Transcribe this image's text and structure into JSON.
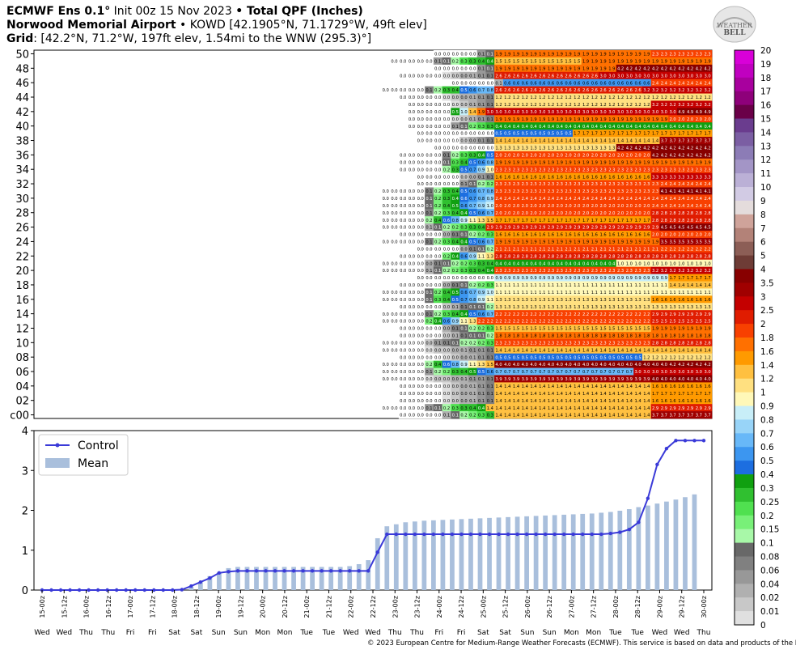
{
  "header": {
    "line1_model": "ECMWF Ens 0.1",
    "line1_deg": "°",
    "line1_init": " Init 00z 15 Nov 2023 ",
    "line1_bullet": "•",
    "line1_var": " Total QPF (Inches)",
    "line2_site": "Norwood Memorial Airport",
    "line2_rest": " • KOWD [42.1905°N, 71.1729°W, 49ft elev]",
    "line3_grid": "Grid",
    "line3_rest": ": [42.2°N, 71.2°W, 197ft elev, 1.54mi to the WNW (295.3)°]"
  },
  "logo": {
    "text_top": "WEATHER",
    "text_bottom": "BELL"
  },
  "copyright": "© 2023 European Centre for Medium-Range Weather Forecasts (ECMWF). This service is based on data and products of the ECMWF.",
  "colorbar": {
    "labels": [
      "20",
      "19",
      "18",
      "17",
      "16",
      "15",
      "14",
      "13",
      "12",
      "11",
      "10",
      "9",
      "8",
      "7",
      "6",
      "5",
      "4",
      "3.5",
      "3",
      "2.5",
      "2",
      "1.8",
      "1.6",
      "1.4",
      "1.2",
      "1",
      "0.9",
      "0.8",
      "0.7",
      "0.6",
      "0.5",
      "0.4",
      "0.3",
      "0.25",
      "0.2",
      "0.15",
      "0.1",
      "0.08",
      "0.06",
      "0.04",
      "0.02",
      "0.01",
      "0"
    ],
    "colors": [
      "#d800d8",
      "#c000c0",
      "#a8009e",
      "#8e007a",
      "#6a0048",
      "#6a3c8e",
      "#7b5ea3",
      "#8c7cb6",
      "#a395c6",
      "#bbb0d6",
      "#d2cbe4",
      "#e4dcdc",
      "#cfa39a",
      "#b38278",
      "#8c5e56",
      "#6e3c36",
      "#880000",
      "#a00000",
      "#c40000",
      "#e01c00",
      "#f84000",
      "#ff7000",
      "#ff9a00",
      "#ffc040",
      "#ffe080",
      "#fff8b8",
      "#c8eef8",
      "#98d4f8",
      "#68b8f8",
      "#3c96f0",
      "#1c6ee0",
      "#10a010",
      "#30c030",
      "#50e050",
      "#78f078",
      "#a8f8a8",
      "#686868",
      "#808080",
      "#989898",
      "#b0b0b0",
      "#c8c8c8",
      "#e0e0e0",
      "#ffffff"
    ]
  },
  "chart_data": [
    {
      "type": "heatmap",
      "title": "Total QPF (Inches)",
      "y_labels": [
        "50",
        "48",
        "46",
        "44",
        "42",
        "40",
        "38",
        "36",
        "34",
        "32",
        "30",
        "28",
        "26",
        "24",
        "22",
        "20",
        "18",
        "16",
        "14",
        "12",
        "10",
        "08",
        "06",
        "04",
        "02",
        "c00"
      ],
      "notes": "Ensemble member plume (51 members: c00 control + 01–50). Each row: accumulated QPF from 15-00z to 30-00z at 6-hourly steps. Rows described by key values: [t0, rise_start_step, value_before_jump, jump_step, plateau, late_jump_step, final]",
      "steps": 61,
      "members": [
        {
          "m": "50",
          "base": 0.0,
          "r1": 34,
          "v1": 0.2,
          "j": 36,
          "p": 1.9,
          "j2": 54,
          "f": 2.3
        },
        {
          "m": "49",
          "base": 0.0,
          "r1": 29,
          "v1": 0.5,
          "j": 36,
          "p": 1.5,
          "j2": 46,
          "f": 1.9
        },
        {
          "m": "48",
          "base": 0.0,
          "r1": 34,
          "v1": 0.2,
          "j": 36,
          "p": 1.9,
          "j2": 50,
          "f": 4.2
        },
        {
          "m": "47",
          "base": 0.0,
          "r1": 30,
          "v1": 0.1,
          "j": 36,
          "p": 2.6,
          "j2": 48,
          "f": 3.0
        },
        {
          "m": "46",
          "base": 0.0,
          "r1": 36,
          "v1": 0.1,
          "j": 37,
          "p": 0.6,
          "j2": 54,
          "f": 2.4
        },
        {
          "m": "45",
          "base": 0.0,
          "r1": 28,
          "v1": 0.9,
          "j": 36,
          "p": 2.6,
          "j2": 53,
          "f": 3.2
        },
        {
          "m": "44",
          "base": 0.0,
          "r1": 30,
          "v1": 0.1,
          "j": 36,
          "p": 1.2,
          "j2": 54,
          "f": 1.2
        },
        {
          "m": "43",
          "base": 0.0,
          "r1": 31,
          "v1": 0.1,
          "j": 36,
          "p": 1.2,
          "j2": 54,
          "f": 3.2
        },
        {
          "m": "42",
          "base": 0.0,
          "r1": 31,
          "v1": 2.4,
          "j": 35,
          "p": 3.0,
          "j2": 57,
          "f": 4.9
        },
        {
          "m": "41",
          "base": 0.0,
          "r1": 31,
          "v1": 0.1,
          "j": 36,
          "p": 1.9,
          "j2": 56,
          "f": 2.0
        },
        {
          "m": "40",
          "base": 0.0,
          "r1": 31,
          "v1": 0.4,
          "j": 36,
          "p": 0.4,
          "j2": 60,
          "f": 0.4
        },
        {
          "m": "39",
          "base": 0.0,
          "r1": 32,
          "v1": 0.0,
          "j": 36,
          "p": 0.5,
          "j2": 45,
          "f": 1.7
        },
        {
          "m": "38",
          "base": 0.0,
          "r1": 32,
          "v1": 0.1,
          "j": 36,
          "p": 1.4,
          "j2": 55,
          "f": 3.7
        },
        {
          "m": "37",
          "base": 0.0,
          "r1": 34,
          "v1": 0.0,
          "j": 36,
          "p": 1.3,
          "j2": 50,
          "f": 4.2
        },
        {
          "m": "36",
          "base": 0.0,
          "r1": 30,
          "v1": 0.6,
          "j": 36,
          "p": 2.0,
          "j2": 54,
          "f": 4.2
        },
        {
          "m": "35",
          "base": 0.0,
          "r1": 30,
          "v1": 0.9,
          "j": 36,
          "p": 1.9,
          "j2": 52,
          "f": 1.9
        },
        {
          "m": "34",
          "base": 0.0,
          "r1": 30,
          "v1": 1.2,
          "j": 36,
          "p": 2.3,
          "j2": 55,
          "f": 2.3
        },
        {
          "m": "33",
          "base": 0.0,
          "r1": 32,
          "v1": 0.1,
          "j": 36,
          "p": 1.6,
          "j2": 54,
          "f": 3.3
        },
        {
          "m": "32",
          "base": 0.0,
          "r1": 32,
          "v1": 0.3,
          "j": 36,
          "p": 2.3,
          "j2": 55,
          "f": 2.4
        },
        {
          "m": "31",
          "base": 0.0,
          "r1": 28,
          "v1": 0.9,
          "j": 36,
          "p": 2.3,
          "j2": 55,
          "f": 4.1
        },
        {
          "m": "30",
          "base": 0.0,
          "r1": 28,
          "v1": 1.0,
          "j": 36,
          "p": 2.4,
          "j2": 55,
          "f": 2.4
        },
        {
          "m": "29",
          "base": 0.0,
          "r1": 28,
          "v1": 1.1,
          "j": 36,
          "p": 2.0,
          "j2": 54,
          "f": 2.4
        },
        {
          "m": "28",
          "base": 0.0,
          "r1": 28,
          "v1": 0.8,
          "j": 36,
          "p": 2.0,
          "j2": 54,
          "f": 2.8
        },
        {
          "m": "27",
          "base": 0.0,
          "r1": 28,
          "v1": 1.7,
          "j": 36,
          "p": 1.7,
          "j2": 54,
          "f": 2.8
        },
        {
          "m": "26",
          "base": 0.0,
          "r1": 28,
          "v1": 0.4,
          "j": 35,
          "p": 2.9,
          "j2": 55,
          "f": 4.5
        },
        {
          "m": "25",
          "base": 0.0,
          "r1": 30,
          "v1": 0.3,
          "j": 36,
          "p": 1.6,
          "j2": 54,
          "f": 2.0
        },
        {
          "m": "24",
          "base": 0.0,
          "r1": 28,
          "v1": 0.8,
          "j": 36,
          "p": 1.9,
          "j2": 55,
          "f": 3.5
        },
        {
          "m": "23",
          "base": 0.0,
          "r1": 32,
          "v1": 0.2,
          "j": 36,
          "p": 2.1,
          "j2": 55,
          "f": 2.2
        },
        {
          "m": "22",
          "base": 0.0,
          "r1": 30,
          "v1": 1.5,
          "j": 36,
          "p": 2.8,
          "j2": 56,
          "f": 2.8
        },
        {
          "m": "21",
          "base": 0.0,
          "r1": 28,
          "v1": 0.4,
          "j": 36,
          "p": 0.4,
          "j2": 50,
          "f": 1.0
        },
        {
          "m": "20",
          "base": 0.0,
          "r1": 28,
          "v1": 0.5,
          "j": 36,
          "p": 2.3,
          "j2": 54,
          "f": 3.2
        },
        {
          "m": "19",
          "base": 0.0,
          "r1": 32,
          "v1": 0.0,
          "j": 36,
          "p": 0.9,
          "j2": 56,
          "f": 1.7
        },
        {
          "m": "18",
          "base": 0.0,
          "r1": 30,
          "v1": 0.3,
          "j": 36,
          "p": 1.1,
          "j2": 56,
          "f": 1.4
        },
        {
          "m": "17",
          "base": 0.0,
          "r1": 28,
          "v1": 1.1,
          "j": 36,
          "p": 1.1,
          "j2": 56,
          "f": 1.1
        },
        {
          "m": "16",
          "base": 0.0,
          "r1": 28,
          "v1": 1.2,
          "j": 36,
          "p": 1.3,
          "j2": 54,
          "f": 1.6
        },
        {
          "m": "15",
          "base": 0.0,
          "r1": 30,
          "v1": 0.2,
          "j": 36,
          "p": 1.3,
          "j2": 56,
          "f": 1.3
        },
        {
          "m": "14",
          "base": 0.0,
          "r1": 28,
          "v1": 0.8,
          "j": 36,
          "p": 2.2,
          "j2": 54,
          "f": 2.9
        },
        {
          "m": "13",
          "base": 0.0,
          "r1": 28,
          "v1": 1.5,
          "j": 34,
          "p": 2.2,
          "j2": 54,
          "f": 2.5
        },
        {
          "m": "12",
          "base": 0.0,
          "r1": 30,
          "v1": 0.3,
          "j": 36,
          "p": 1.5,
          "j2": 54,
          "f": 1.9
        },
        {
          "m": "11",
          "base": 0.0,
          "r1": 30,
          "v1": 0.2,
          "j": 36,
          "p": 1.8,
          "j2": 54,
          "f": 1.8
        },
        {
          "m": "10",
          "base": 0.0,
          "r1": 28,
          "v1": 0.3,
          "j": 36,
          "p": 2.3,
          "j2": 54,
          "f": 2.8
        },
        {
          "m": "09",
          "base": 0.0,
          "r1": 28,
          "v1": 0.1,
          "j": 36,
          "p": 1.4,
          "j2": 52,
          "f": 1.4
        },
        {
          "m": "08",
          "base": 0.0,
          "r1": 30,
          "v1": 0.1,
          "j": 36,
          "p": 0.5,
          "j2": 53,
          "f": 1.2
        },
        {
          "m": "07",
          "base": 0.0,
          "r1": 28,
          "v1": 1.7,
          "j": 36,
          "p": 4.0,
          "j2": 56,
          "f": 4.2
        },
        {
          "m": "06",
          "base": 0.0,
          "r1": 28,
          "v1": 0.7,
          "j": 36,
          "p": 0.7,
          "j2": 52,
          "f": 3.0
        },
        {
          "m": "05",
          "base": 0.0,
          "r1": 28,
          "v1": 0.1,
          "j": 36,
          "p": 3.9,
          "j2": 54,
          "f": 4.0
        },
        {
          "m": "04",
          "base": 0.0,
          "r1": 30,
          "v1": 0.1,
          "j": 36,
          "p": 1.4,
          "j2": 54,
          "f": 1.6
        },
        {
          "m": "03",
          "base": 0.0,
          "r1": 30,
          "v1": 0.1,
          "j": 36,
          "p": 1.4,
          "j2": 54,
          "f": 1.7
        },
        {
          "m": "02",
          "base": 0.0,
          "r1": 30,
          "v1": 0.1,
          "j": 36,
          "p": 1.4,
          "j2": 54,
          "f": 1.6
        },
        {
          "m": "01",
          "base": 0.0,
          "r1": 28,
          "v1": 0.5,
          "j": 35,
          "p": 1.4,
          "j2": 54,
          "f": 2.9
        },
        {
          "m": "c00",
          "base": 0.0,
          "r1": 30,
          "v1": 0.4,
          "j": 36,
          "p": 1.4,
          "j2": 54,
          "f": 3.7
        }
      ]
    },
    {
      "type": "line",
      "legend_placement": "top-left",
      "ylim": [
        0,
        4
      ],
      "y_ticks": [
        "0",
        "1",
        "2",
        "3",
        "4"
      ],
      "x_labels": [
        "15-00z",
        "15-12z",
        "16-00z",
        "16-12z",
        "17-00z",
        "17-12z",
        "18-00z",
        "18-12z",
        "19-00z",
        "19-12z",
        "20-00z",
        "20-12z",
        "21-00z",
        "21-12z",
        "22-00z",
        "22-12z",
        "23-00z",
        "23-12z",
        "24-00z",
        "24-12z",
        "25-00z",
        "25-12z",
        "26-00z",
        "26-12z",
        "27-00z",
        "27-12z",
        "28-00z",
        "28-12z",
        "29-00z",
        "29-12z",
        "30-00z"
      ],
      "day_labels": [
        "Wed",
        "Wed",
        "Thu",
        "Thu",
        "Fri",
        "Fri",
        "Sat",
        "Sat",
        "Sun",
        "Sun",
        "Mon",
        "Mon",
        "Tue",
        "Tue",
        "Wed",
        "Wed",
        "Thu",
        "Thu",
        "Fri",
        "Fri",
        "Sat",
        "Sat",
        "Sun",
        "Sun",
        "Mon",
        "Mon",
        "Tue",
        "Tue",
        "Wed",
        "Wed",
        "Thu"
      ],
      "series": [
        {
          "name": "Control",
          "type": "line",
          "color": "#3a3ad8",
          "values": [
            0,
            0,
            0,
            0,
            0,
            0,
            0,
            0,
            0,
            0,
            0,
            0,
            0,
            0,
            0,
            0.01,
            0.1,
            0.2,
            0.3,
            0.43,
            0.46,
            0.48,
            0.48,
            0.48,
            0.48,
            0.48,
            0.48,
            0.48,
            0.48,
            0.48,
            0.48,
            0.48,
            0.48,
            0.48,
            0.48,
            0.48,
            0.95,
            1.4,
            1.4,
            1.4,
            1.4,
            1.4,
            1.4,
            1.4,
            1.4,
            1.4,
            1.4,
            1.4,
            1.4,
            1.4,
            1.4,
            1.4,
            1.4,
            1.4,
            1.4,
            1.4,
            1.4,
            1.4,
            1.4,
            1.4,
            1.4,
            1.42,
            1.45,
            1.52,
            1.7,
            2.3,
            3.15,
            3.55,
            3.75,
            3.75,
            3.75,
            3.75
          ]
        },
        {
          "name": "Mean",
          "type": "bar",
          "color": "#a9bfdc",
          "values": [
            0,
            0,
            0,
            0,
            0,
            0,
            0,
            0,
            0,
            0,
            0,
            0,
            0,
            0,
            0,
            0.01,
            0.08,
            0.2,
            0.35,
            0.45,
            0.55,
            0.58,
            0.58,
            0.58,
            0.58,
            0.58,
            0.58,
            0.58,
            0.58,
            0.58,
            0.58,
            0.58,
            0.58,
            0.6,
            0.65,
            0.75,
            1.3,
            1.6,
            1.65,
            1.7,
            1.72,
            1.74,
            1.75,
            1.76,
            1.77,
            1.78,
            1.79,
            1.8,
            1.81,
            1.82,
            1.83,
            1.84,
            1.85,
            1.86,
            1.87,
            1.88,
            1.89,
            1.9,
            1.91,
            1.92,
            1.94,
            1.96,
            1.99,
            2.03,
            2.08,
            2.12,
            2.17,
            2.22,
            2.27,
            2.33,
            2.4
          ]
        }
      ]
    }
  ]
}
